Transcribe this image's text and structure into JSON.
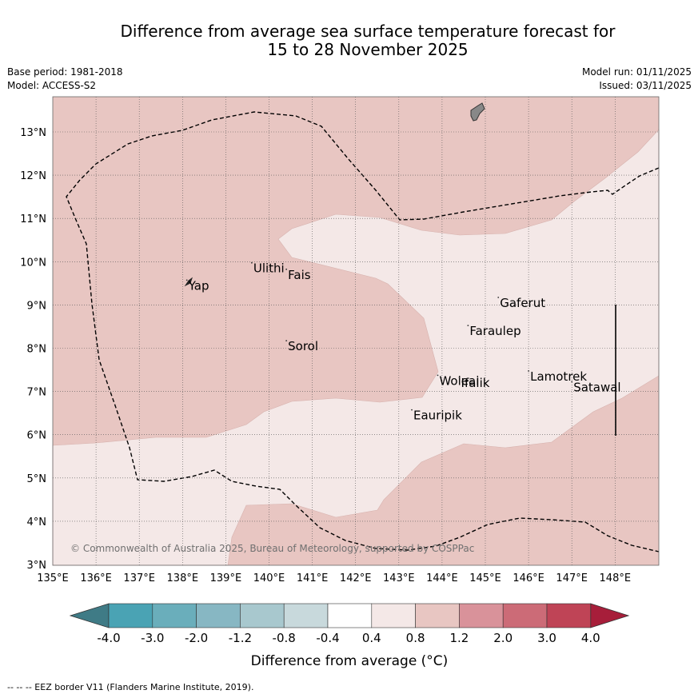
{
  "header": {
    "title_line1": "Difference from average sea surface temperature forecast for",
    "title_line2": "15 to 28 November 2025",
    "base_period": "Base period: 1981-2018",
    "model": "Model: ACCESS-S2",
    "model_run": "Model run: 01/11/2025",
    "issued": "Issued: 03/11/2025"
  },
  "map": {
    "lon_range": [
      135,
      149
    ],
    "lat_range": [
      3,
      13.8
    ],
    "lon_ticks": [
      "135°E",
      "136°E",
      "137°E",
      "138°E",
      "139°E",
      "140°E",
      "141°E",
      "142°E",
      "143°E",
      "144°E",
      "145°E",
      "146°E",
      "147°E",
      "148°E"
    ],
    "lat_ticks": [
      "3°N",
      "4°N",
      "5°N",
      "6°N",
      "7°N",
      "8°N",
      "9°N",
      "10°N",
      "11°N",
      "12°N",
      "13°N"
    ],
    "copyright": "© Commonwealth of Australia 2025, Bureau of Meteorology, supported by COSPPac",
    "places": [
      {
        "name": "Yap",
        "lon": 138.1,
        "lat": 9.5
      },
      {
        "name": "Ulithi",
        "lon": 139.6,
        "lat": 9.9
      },
      {
        "name": "Fais",
        "lon": 140.4,
        "lat": 9.75
      },
      {
        "name": "Gaferut",
        "lon": 145.3,
        "lat": 9.1
      },
      {
        "name": "Faraulep",
        "lon": 144.6,
        "lat": 8.45
      },
      {
        "name": "Sorol",
        "lon": 140.4,
        "lat": 8.1
      },
      {
        "name": "Woleai",
        "lon": 143.9,
        "lat": 7.3
      },
      {
        "name": "Ifalik",
        "lon": 144.4,
        "lat": 7.25
      },
      {
        "name": "Lamotrek",
        "lon": 146.0,
        "lat": 7.4
      },
      {
        "name": "Satawal",
        "lon": 147.0,
        "lat": 7.15
      },
      {
        "name": "Eauripik",
        "lon": 143.3,
        "lat": 6.5
      }
    ]
  },
  "legend": {
    "title": "Difference from average (°C)",
    "ticks": [
      "-4.0",
      "-3.0",
      "-2.0",
      "-1.2",
      "-0.8",
      "-0.4",
      "0.4",
      "0.8",
      "1.2",
      "2.0",
      "3.0",
      "4.0"
    ],
    "colors": [
      "#3f7b86",
      "#4aa3b4",
      "#6aaebb",
      "#87b7c3",
      "#a8c8ce",
      "#c8d9dc",
      "#ffffff",
      "#f4e8e7",
      "#e8c6c2",
      "#d9929a",
      "#cc6b77",
      "#bf4456",
      "#a71e3a"
    ],
    "fill_warm_light": "#f4e8e7",
    "fill_warm_mid": "#e8c6c2"
  },
  "footnote": "--  --  -- EEZ border V11 (Flanders Marine Institute, 2019)."
}
